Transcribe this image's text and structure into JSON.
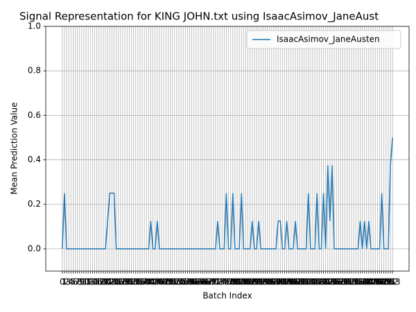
{
  "chart_data": {
    "type": "line",
    "title": "Signal Representation for KING JOHN.txt using IsaacAsimov_JaneAust",
    "x_label": "Batch Index",
    "y_label": "Mean Prediction Value",
    "x": [
      0,
      1,
      2,
      3,
      4,
      5,
      6,
      7,
      8,
      9,
      10,
      11,
      12,
      13,
      14,
      15,
      16,
      17,
      18,
      19,
      20,
      21,
      22,
      23,
      24,
      25,
      26,
      27,
      28,
      29,
      30,
      31,
      32,
      33,
      34,
      35,
      36,
      37,
      38,
      39,
      40,
      41,
      42,
      43,
      44,
      45,
      46,
      47,
      48,
      49,
      50,
      51,
      52,
      53,
      54,
      55,
      56,
      57,
      58,
      59,
      60,
      61,
      62,
      63,
      64,
      65,
      66,
      67,
      68,
      69,
      70,
      71,
      72,
      73,
      74,
      75,
      76,
      77,
      78,
      79,
      80,
      81,
      82,
      83,
      84,
      85,
      86,
      87,
      88,
      89,
      90,
      91,
      92,
      93,
      94,
      95,
      96,
      97,
      98,
      99,
      100,
      101,
      102,
      103,
      104,
      105,
      106,
      107,
      108,
      109,
      110,
      111,
      112,
      113,
      114,
      115,
      116,
      117,
      118,
      119,
      120,
      121,
      122,
      123,
      124,
      125,
      126,
      127,
      128,
      129,
      130,
      131,
      132,
      133,
      134,
      135,
      136,
      137,
      138,
      139,
      140,
      141,
      142,
      143,
      144,
      145,
      146,
      147,
      148,
      149,
      150,
      151,
      152,
      153
    ],
    "series": [
      {
        "name": "IsaacAsimov_JaneAusten",
        "color": "#1f77b4",
        "values": [
          0,
          0.25,
          0,
          0,
          0,
          0,
          0,
          0,
          0,
          0,
          0,
          0,
          0,
          0,
          0,
          0,
          0,
          0,
          0,
          0,
          0,
          0.125,
          0.25,
          0.25,
          0.25,
          0,
          0,
          0,
          0,
          0,
          0,
          0,
          0,
          0,
          0,
          0,
          0,
          0,
          0,
          0,
          0,
          0.125,
          0,
          0,
          0.125,
          0,
          0,
          0,
          0,
          0,
          0,
          0,
          0,
          0,
          0,
          0,
          0,
          0,
          0,
          0,
          0,
          0,
          0,
          0,
          0,
          0,
          0,
          0,
          0,
          0,
          0,
          0,
          0.125,
          0,
          0,
          0,
          0.25,
          0,
          0,
          0.25,
          0,
          0,
          0,
          0.25,
          0,
          0,
          0,
          0,
          0.125,
          0,
          0,
          0.125,
          0,
          0,
          0,
          0,
          0,
          0,
          0,
          0,
          0.125,
          0.125,
          0,
          0,
          0.125,
          0,
          0,
          0,
          0.125,
          0,
          0,
          0,
          0,
          0,
          0.25,
          0,
          0,
          0,
          0.25,
          0,
          0,
          0.25,
          0,
          0.375,
          0.125,
          0.375,
          0,
          0,
          0,
          0,
          0,
          0,
          0,
          0,
          0,
          0,
          0,
          0,
          0.125,
          0,
          0.125,
          0,
          0.125,
          0,
          0,
          0,
          0,
          0,
          0.25,
          0,
          0,
          0,
          0.375,
          0.5
        ]
      }
    ],
    "xlim": [
      -7.65,
      160.65
    ],
    "ylim": [
      -0.1,
      1.0
    ],
    "yticks": [
      {
        "value": 0,
        "label": "0.0"
      },
      0.2,
      0.4,
      0.6,
      0.8,
      {
        "value": 1,
        "label": "1.0"
      }
    ],
    "grid": true,
    "legend": "upper right"
  }
}
